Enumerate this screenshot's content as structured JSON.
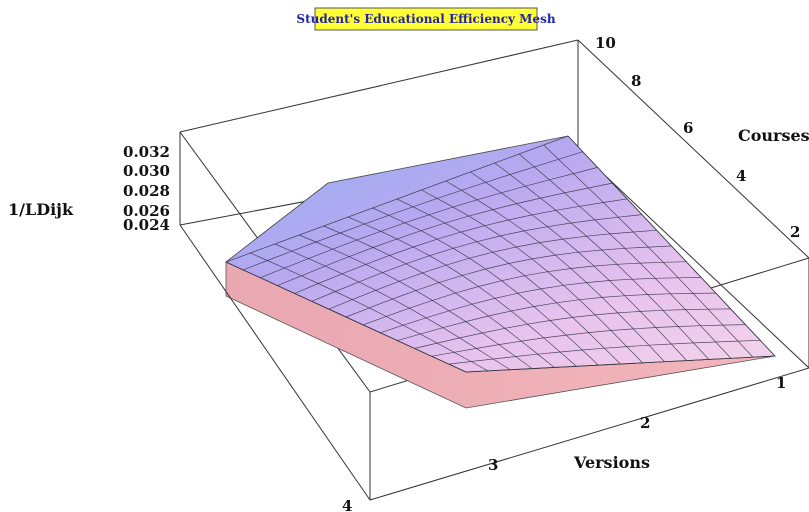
{
  "chart_data": {
    "type": "surface",
    "title": "Student's Educational Efficiency Mesh",
    "xlabel": "Versions",
    "ylabel": "Courses",
    "zlabel": "1/LDijk",
    "x_ticks": [
      "1",
      "2",
      "3",
      "4"
    ],
    "y_ticks": [
      "2",
      "4",
      "6",
      "8",
      "10"
    ],
    "z_ticks": [
      "0.024",
      "0.026",
      "0.028",
      "0.030",
      "0.032"
    ],
    "xlim": [
      1,
      4
    ],
    "ylim": [
      1,
      10
    ],
    "zlim": [
      0.024,
      0.032
    ],
    "mesh_note": "Surface peaks near 0.033 at Versions 4 / Courses 10 and falls to about 0.024 at Versions 1 / Courses 1",
    "colors": {
      "top": "#9fb8f5",
      "mid": "#c9b6f0",
      "low": "#f2c6e2",
      "side": "#eeb0b8",
      "title_bg": "#ffff33",
      "title_text": "#2222aa"
    }
  }
}
